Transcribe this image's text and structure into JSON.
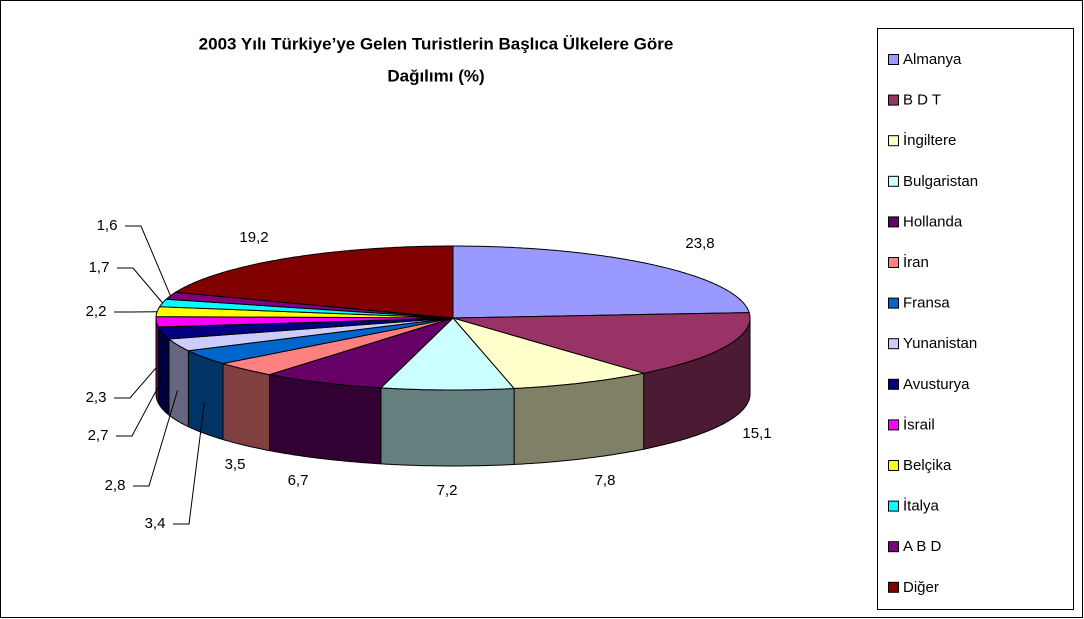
{
  "chart_data": {
    "type": "pie3d",
    "title": [
      "2003 Yılı Türkiye’ye Gelen Turistlerin Başlıca Ülkelere Göre",
      "Dağılımı (%)"
    ],
    "categories": [
      "Almanya",
      "B D T",
      "İngiltere",
      "Bulgaristan",
      "Hollanda",
      "İran",
      "Fransa",
      "Yunanistan",
      "Avusturya",
      "İsrail",
      "Belçika",
      "İtalya",
      "A B D",
      "Diğer"
    ],
    "values": [
      23.8,
      15.1,
      7.8,
      7.2,
      6.7,
      3.5,
      3.4,
      2.8,
      2.7,
      2.3,
      2.2,
      1.7,
      1.6,
      19.2
    ],
    "value_labels": [
      "23,8",
      "15,1",
      "7,8",
      "7,2",
      "6,7",
      "3,5",
      "3,4",
      "2,8",
      "2,7",
      "2,3",
      "2,2",
      "1,7",
      "1,6",
      "19,2"
    ],
    "colors": [
      "#9999ff",
      "#993366",
      "#ffffcc",
      "#ccffff",
      "#660066",
      "#ff8080",
      "#0066cc",
      "#ccccff",
      "#000080",
      "#ff00ff",
      "#ffff00",
      "#00ffff",
      "#800080",
      "#800000"
    ],
    "legend": "right"
  }
}
